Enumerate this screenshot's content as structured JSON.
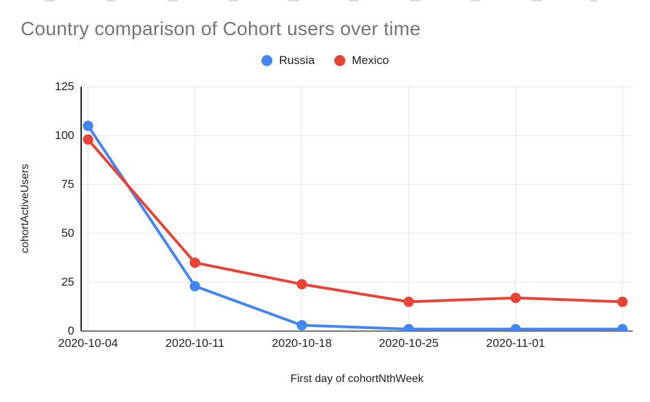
{
  "chart_data": {
    "type": "line",
    "title": "Country comparison of Cohort users over time",
    "xlabel": "First day of cohortNthWeek",
    "ylabel": "cohortActiveUsers",
    "categories": [
      "2020-10-04",
      "2020-10-11",
      "2020-10-18",
      "2020-10-25",
      "2020-11-01",
      ""
    ],
    "series": [
      {
        "name": "Russia",
        "color": "#4285F4",
        "values": [
          105,
          23,
          3,
          1,
          1,
          1
        ]
      },
      {
        "name": "Mexico",
        "color": "#EA4335",
        "values": [
          98,
          35,
          24,
          15,
          17,
          15
        ]
      }
    ],
    "y_ticks": [
      0,
      25,
      50,
      75,
      100,
      125
    ],
    "ylim": [
      0,
      125
    ],
    "grid": true,
    "legend_position": "top-center",
    "gridline_color": "#e3e3e3",
    "y_axis_color": "#212121",
    "x_axis_color": "#757575"
  }
}
